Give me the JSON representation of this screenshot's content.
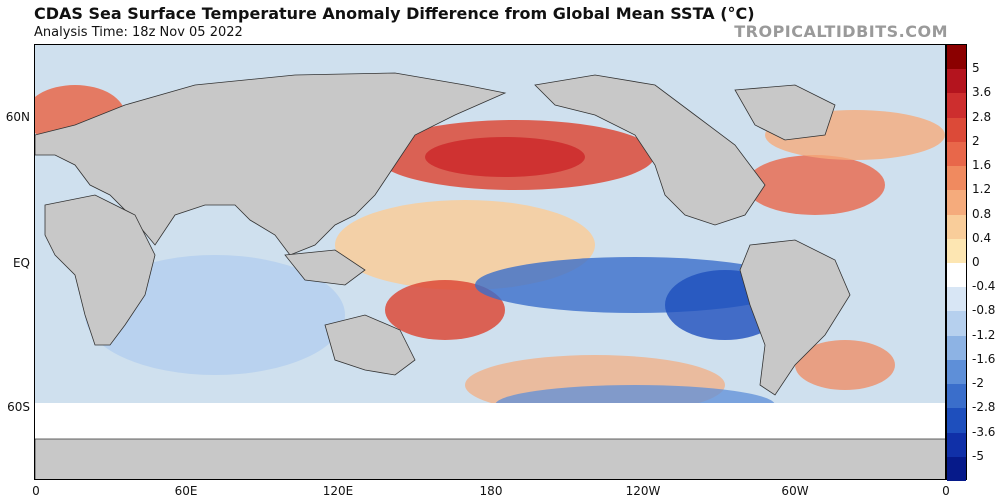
{
  "header": {
    "title": "CDAS Sea Surface Temperature Anomaly Difference from Global Mean SSTA (°C)",
    "subtitle": "Analysis Time: 18z Nov 05 2022",
    "watermark": "TROPICALTIDBITS.COM"
  },
  "map": {
    "lat_labels": [
      "60N",
      "EQ",
      "60S"
    ],
    "lon_labels": [
      "0",
      "60E",
      "120E",
      "180",
      "120W",
      "60W",
      "0"
    ],
    "land_color": "#c8c8c8",
    "ice_color": "#ffffff"
  },
  "colorbar": {
    "labels": [
      "5",
      "3.6",
      "2.8",
      "2",
      "1.6",
      "1.2",
      "0.8",
      "0.4",
      "0",
      "-0.4",
      "-0.8",
      "-1.2",
      "-1.6",
      "-2",
      "-2.8",
      "-3.6",
      "-5"
    ],
    "colors": [
      "#8b0000",
      "#b4141e",
      "#cd2e2e",
      "#dc4a38",
      "#e8674a",
      "#f08a5f",
      "#f5ab7c",
      "#f9cd9a",
      "#fde6b2",
      "#ffffff",
      "#d8e6f5",
      "#b6d0ee",
      "#8db3e4",
      "#5e8fd8",
      "#3a6ecb",
      "#1e4fbd",
      "#1030a8",
      "#061a8a"
    ]
  }
}
